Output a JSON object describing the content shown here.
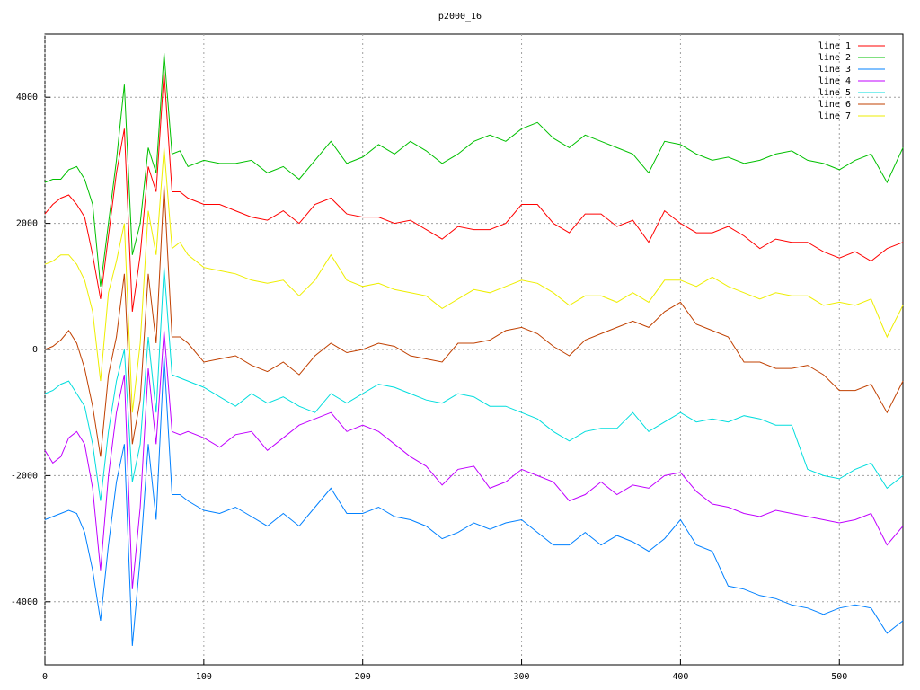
{
  "chart_data": {
    "type": "line",
    "title": "p2000_16",
    "xlim": [
      0,
      540
    ],
    "ylim": [
      -5000,
      5000
    ],
    "xticks": [
      0,
      100,
      200,
      300,
      400,
      500
    ],
    "yticks": [
      -4000,
      -2000,
      0,
      2000,
      4000
    ],
    "grid": true,
    "legend": "top-right",
    "x": [
      0,
      5,
      10,
      15,
      20,
      25,
      30,
      35,
      40,
      45,
      50,
      55,
      60,
      65,
      70,
      75,
      80,
      85,
      90,
      100,
      110,
      120,
      130,
      140,
      150,
      160,
      170,
      180,
      190,
      200,
      210,
      220,
      230,
      240,
      250,
      260,
      270,
      280,
      290,
      300,
      310,
      320,
      330,
      340,
      350,
      360,
      370,
      380,
      390,
      400,
      410,
      420,
      430,
      440,
      450,
      460,
      470,
      480,
      490,
      500,
      510,
      520,
      530,
      540
    ],
    "series": [
      {
        "name": "line 1",
        "color": "#ff0000",
        "values": [
          2150,
          2300,
          2400,
          2450,
          2300,
          2100,
          1500,
          800,
          1800,
          2800,
          3500,
          600,
          1500,
          2900,
          2500,
          4400,
          2500,
          2500,
          2400,
          2300,
          2300,
          2200,
          2100,
          2050,
          2200,
          2000,
          2300,
          2400,
          2150,
          2100,
          2100,
          2000,
          2050,
          1900,
          1750,
          1950,
          1900,
          1900,
          2000,
          2300,
          2300,
          2000,
          1850,
          2150,
          2150,
          1950,
          2050,
          1700,
          2200,
          2000,
          1850,
          1850,
          1950,
          1800,
          1600,
          1750,
          1700,
          1700,
          1550,
          1450,
          1550,
          1400,
          1600,
          1700
        ]
      },
      {
        "name": "line 2",
        "color": "#00c000",
        "values": [
          2650,
          2700,
          2700,
          2850,
          2900,
          2700,
          2300,
          1000,
          2000,
          3000,
          4200,
          1500,
          2000,
          3200,
          2800,
          4700,
          3100,
          3150,
          2900,
          3000,
          2950,
          2950,
          3000,
          2800,
          2900,
          2700,
          3000,
          3300,
          2950,
          3050,
          3250,
          3100,
          3300,
          3150,
          2950,
          3100,
          3300,
          3400,
          3300,
          3500,
          3600,
          3350,
          3200,
          3400,
          3300,
          3200,
          3100,
          2800,
          3300,
          3250,
          3100,
          3000,
          3050,
          2950,
          3000,
          3100,
          3150,
          3000,
          2950,
          2850,
          3000,
          3100,
          2650,
          3200
        ]
      },
      {
        "name": "line 3",
        "color": "#0080ff",
        "values": [
          -2700,
          -2650,
          -2600,
          -2550,
          -2600,
          -2900,
          -3500,
          -4300,
          -3100,
          -2100,
          -1500,
          -4700,
          -3300,
          -1500,
          -2700,
          -100,
          -2300,
          -2300,
          -2400,
          -2550,
          -2600,
          -2500,
          -2650,
          -2800,
          -2600,
          -2800,
          -2500,
          -2200,
          -2600,
          -2600,
          -2500,
          -2650,
          -2700,
          -2800,
          -3000,
          -2900,
          -2750,
          -2850,
          -2750,
          -2700,
          -2900,
          -3100,
          -3100,
          -2900,
          -3100,
          -2950,
          -3050,
          -3200,
          -3000,
          -2700,
          -3100,
          -3200,
          -3750,
          -3800,
          -3900,
          -3950,
          -4050,
          -4100,
          -4200,
          -4100,
          -4050,
          -4100,
          -4500,
          -4300
        ]
      },
      {
        "name": "line 4",
        "color": "#c000ff",
        "values": [
          -1600,
          -1800,
          -1700,
          -1400,
          -1300,
          -1500,
          -2200,
          -3500,
          -2000,
          -1000,
          -400,
          -3800,
          -2500,
          -300,
          -1500,
          300,
          -1300,
          -1350,
          -1300,
          -1400,
          -1550,
          -1350,
          -1300,
          -1600,
          -1400,
          -1200,
          -1100,
          -1000,
          -1300,
          -1200,
          -1300,
          -1500,
          -1700,
          -1850,
          -2150,
          -1900,
          -1850,
          -2200,
          -2100,
          -1900,
          -2000,
          -2100,
          -2400,
          -2300,
          -2100,
          -2300,
          -2150,
          -2200,
          -2000,
          -1950,
          -2250,
          -2450,
          -2500,
          -2600,
          -2650,
          -2550,
          -2600,
          -2650,
          -2700,
          -2750,
          -2700,
          -2600,
          -3100,
          -2800
        ]
      },
      {
        "name": "line 5",
        "color": "#00dddd",
        "values": [
          -700,
          -650,
          -550,
          -500,
          -700,
          -900,
          -1500,
          -2400,
          -1300,
          -500,
          0,
          -2100,
          -1500,
          200,
          -1000,
          1300,
          -400,
          -450,
          -500,
          -600,
          -750,
          -900,
          -700,
          -850,
          -750,
          -900,
          -1000,
          -700,
          -850,
          -700,
          -550,
          -600,
          -700,
          -800,
          -850,
          -700,
          -750,
          -900,
          -900,
          -1000,
          -1100,
          -1300,
          -1450,
          -1300,
          -1250,
          -1250,
          -1000,
          -1300,
          -1150,
          -1000,
          -1150,
          -1100,
          -1150,
          -1050,
          -1100,
          -1200,
          -1200,
          -1900,
          -2000,
          -2050,
          -1900,
          -1800,
          -2200,
          -2000
        ]
      },
      {
        "name": "line 6",
        "color": "#c04000",
        "values": [
          0,
          50,
          150,
          300,
          100,
          -300,
          -900,
          -1700,
          -400,
          200,
          1200,
          -1500,
          -800,
          1200,
          100,
          2600,
          200,
          200,
          100,
          -200,
          -150,
          -100,
          -250,
          -350,
          -200,
          -400,
          -100,
          100,
          -50,
          0,
          100,
          50,
          -100,
          -150,
          -200,
          100,
          100,
          150,
          300,
          350,
          250,
          50,
          -100,
          150,
          250,
          350,
          450,
          350,
          600,
          750,
          400,
          300,
          200,
          -200,
          -200,
          -300,
          -300,
          -250,
          -400,
          -650,
          -650,
          -550,
          -1000,
          -500
        ]
      },
      {
        "name": "line 7",
        "color": "#eeee00",
        "values": [
          1350,
          1400,
          1500,
          1500,
          1350,
          1100,
          600,
          -500,
          900,
          1400,
          2000,
          -1000,
          100,
          2200,
          1500,
          3200,
          1600,
          1700,
          1500,
          1300,
          1250,
          1200,
          1100,
          1050,
          1100,
          850,
          1100,
          1500,
          1100,
          1000,
          1050,
          950,
          900,
          850,
          650,
          800,
          950,
          900,
          1000,
          1100,
          1050,
          900,
          700,
          850,
          850,
          750,
          900,
          750,
          1100,
          1100,
          1000,
          1150,
          1000,
          900,
          800,
          900,
          850,
          850,
          700,
          750,
          700,
          800,
          200,
          700
        ]
      }
    ]
  }
}
